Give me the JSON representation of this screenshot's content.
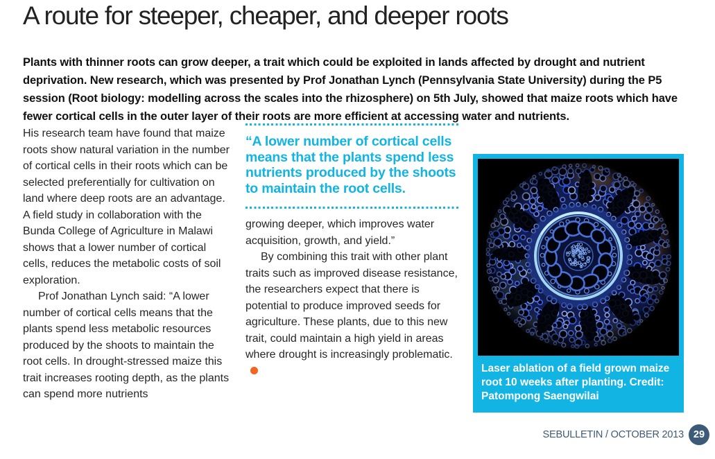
{
  "page": {
    "title": "A route for steeper, cheaper, and deeper roots",
    "intro": "Plants with thinner roots can grow deeper, a trait which could be exploited in lands affected by drought and nutrient deprivation. New research, which was presented by Prof Jonathan Lynch (Pennsylvania State University) during the P5 session (Root biology: modelling across the scales into the rhizosphere) on 5th July, showed that maize roots which have fewer cortical cells in the outer layer of their roots are more efficient at accessing water and nutrients."
  },
  "article": {
    "column1": {
      "paragraph1": "His research team have found that maize roots show natural variation in the number of cortical cells in their roots which can be selected preferentially for cultivation on land where deep roots are an advantage. A field study in collaboration with the Bunda College of Agriculture in Malawi shows that a lower number of cortical cells, reduces the metabolic costs of soil exploration.",
      "paragraph2": "Prof Jonathan Lynch said: “A lower number of cortical cells means that the plants spend less metabolic resources produced by the shoots to maintain the root cells. In drought-stressed maize this trait increases rooting depth, as the plants can spend more nutrients"
    },
    "pull_quote": "“A lower number of cortical cells means that the plants spend less nutrients produced by the shoots to maintain the root cells.",
    "column2": {
      "paragraph1": "growing deeper, which improves water acquisition, growth, and yield.”",
      "paragraph2": "By combining this trait with other plant traits such as improved disease resistance, the researchers expect that there is potential to produce improved seeds for agriculture. These plants, due to this new trait, could maintain a high yield in areas where drought is increasingly problematic."
    }
  },
  "figure": {
    "caption": "Laser ablation of a field grown maize root 10 weeks after planting. Credit: Patompong Saengwilai",
    "image_icon": "maize-root-fluorescence-micrograph"
  },
  "footer": {
    "publication": "SEBULLETIN / OCTOBER 2013",
    "page_number": "29"
  },
  "colors": {
    "accent_cyan": "#12b4e4",
    "footer_slate": "#3d5a78",
    "end_dot_orange": "#f26522",
    "text_dark": "#222222"
  }
}
